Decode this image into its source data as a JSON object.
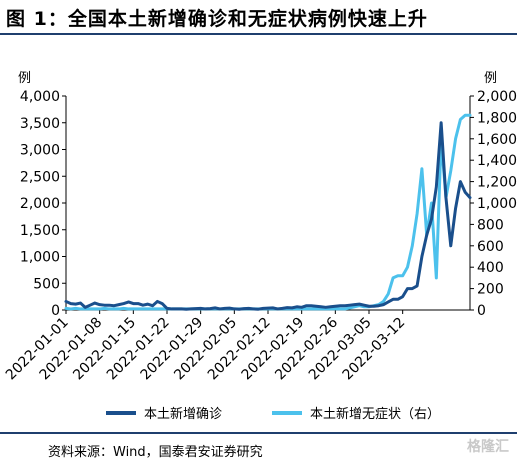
{
  "title": "图 1：全国本土新增确诊和无症状病例快速上升",
  "source": "资料来源：Wind，国泰君安证券研究",
  "watermark": "格隆汇",
  "chart_data": {
    "type": "line",
    "title": "图 1：全国本土新增确诊和无症状病例快速上升",
    "left_unit": "例",
    "right_unit": "例",
    "ylim_left": [
      0,
      4000
    ],
    "ylim_right": [
      0,
      2000
    ],
    "left_ticks": [
      "0",
      "500",
      "1,000",
      "1,500",
      "2,000",
      "2,500",
      "3,000",
      "3,500",
      "4,000"
    ],
    "right_ticks": [
      "0",
      "200",
      "400",
      "600",
      "800",
      "1,000",
      "1,200",
      "1,400",
      "1,600",
      "1,800",
      "2,000"
    ],
    "x_tick_labels": [
      "2022-01-01",
      "2022-01-08",
      "2022-01-15",
      "2022-01-22",
      "2022-01-29",
      "2022-02-05",
      "2022-02-12",
      "2022-02-19",
      "2022-02-26",
      "2022-03-05",
      "2022-03-12"
    ],
    "x_start": "2022-01-01",
    "series": [
      {
        "name": "本土新增确诊",
        "axis": "left",
        "color": "#1a4f8c",
        "values": [
          160,
          120,
          110,
          130,
          50,
          90,
          130,
          100,
          90,
          90,
          80,
          100,
          120,
          150,
          120,
          120,
          90,
          110,
          80,
          160,
          120,
          30,
          20,
          20,
          20,
          15,
          20,
          25,
          30,
          20,
          25,
          40,
          20,
          30,
          35,
          20,
          15,
          25,
          30,
          20,
          15,
          30,
          35,
          40,
          20,
          30,
          45,
          40,
          60,
          50,
          80,
          80,
          70,
          60,
          50,
          60,
          70,
          80,
          80,
          90,
          100,
          110,
          90,
          70,
          70,
          80,
          100,
          150,
          200,
          200,
          250,
          400,
          400,
          450,
          1000,
          1400,
          1700,
          2300,
          3500,
          2100,
          1200,
          1900,
          2400,
          2200,
          2100
        ]
      },
      {
        "name": "本土新增无症状（右）",
        "axis": "right",
        "color": "#4cc1ec",
        "values": [
          15,
          10,
          15,
          10,
          10,
          10,
          10,
          10,
          15,
          10,
          10,
          10,
          15,
          10,
          10,
          10,
          10,
          10,
          10,
          10,
          10,
          10,
          10,
          10,
          10,
          10,
          10,
          10,
          10,
          10,
          10,
          10,
          10,
          10,
          10,
          10,
          10,
          10,
          10,
          10,
          10,
          10,
          10,
          10,
          10,
          10,
          10,
          10,
          10,
          10,
          10,
          10,
          10,
          10,
          10,
          10,
          10,
          10,
          10,
          20,
          30,
          40,
          30,
          30,
          40,
          50,
          80,
          150,
          300,
          320,
          320,
          400,
          600,
          900,
          1320,
          700,
          1000,
          300,
          1600,
          1050,
          1300,
          1600,
          1780,
          1820,
          1820
        ]
      }
    ]
  }
}
